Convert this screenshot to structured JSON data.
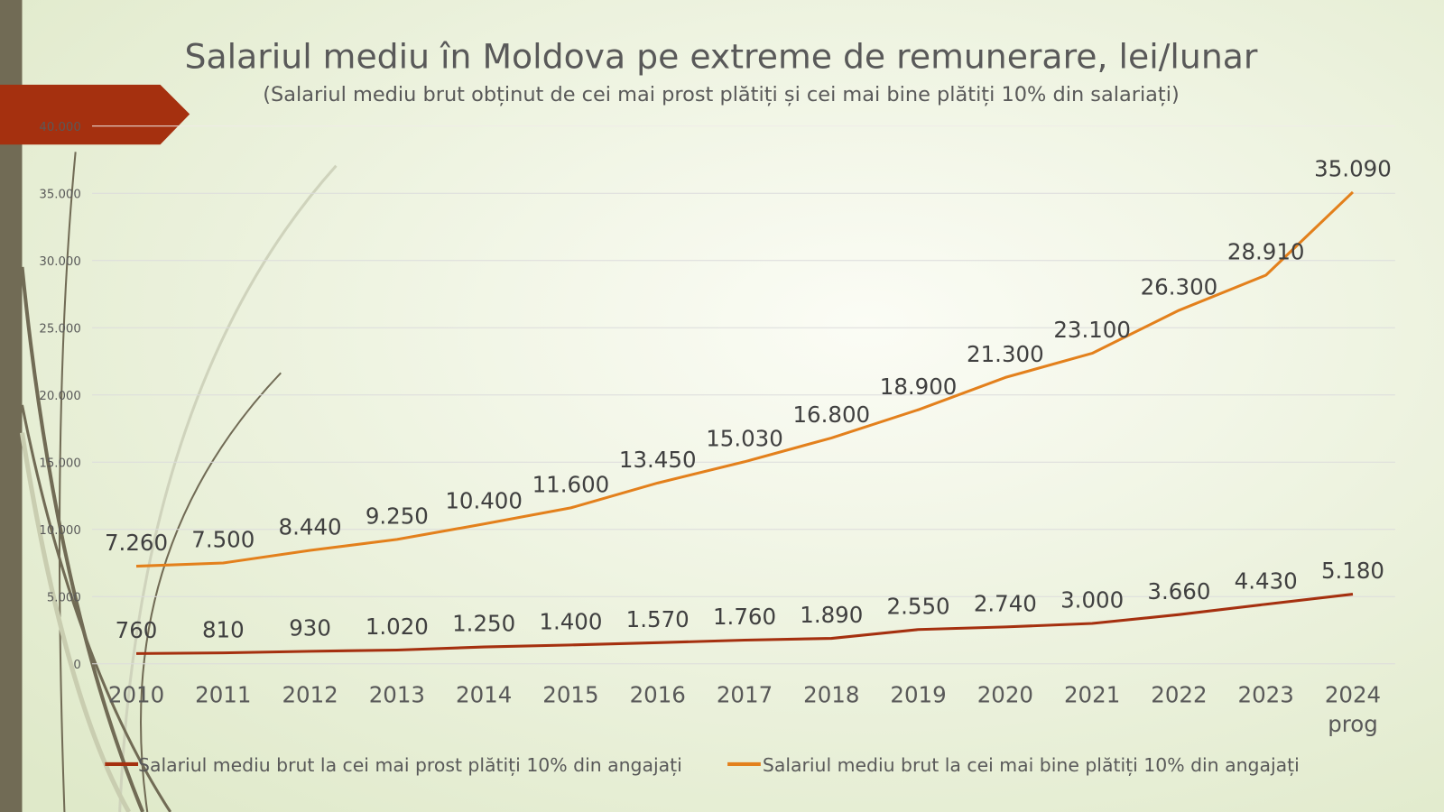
{
  "chart_data": {
    "type": "line",
    "title": "Salariul mediu în Moldova pe extreme de remunerare, lei/lunar",
    "subtitle": "(Salariul mediu brut obținut de cei mai prost plătiți și cei mai bine plătiți 10% din salariați)",
    "categories": [
      "2010",
      "2011",
      "2012",
      "2013",
      "2014",
      "2015",
      "2016",
      "2017",
      "2018",
      "2019",
      "2020",
      "2021",
      "2022",
      "2023",
      "2024 prog"
    ],
    "ylim": [
      0,
      40000
    ],
    "yticks": [
      0,
      5000,
      10000,
      15000,
      20000,
      25000,
      30000,
      35000,
      40000
    ],
    "ytick_labels": [
      "0",
      "5.000",
      "10.000",
      "15.000",
      "20.000",
      "25.000",
      "30.000",
      "35.000",
      "40.000"
    ],
    "grid": true,
    "legend_position": "bottom",
    "series": [
      {
        "name": "Salariul mediu brut la cei mai prost plătiți 10% din angajați",
        "color": "#a5300f",
        "values": [
          760,
          810,
          930,
          1020,
          1250,
          1400,
          1570,
          1760,
          1890,
          2550,
          2740,
          3000,
          3660,
          4430,
          5180
        ],
        "labels": [
          "760",
          "810",
          "930",
          "1.020",
          "1.250",
          "1.400",
          "1.570",
          "1.760",
          "1.890",
          "2.550",
          "2.740",
          "3.000",
          "3.660",
          "4.430",
          "5.180"
        ]
      },
      {
        "name": "Salariul mediu brut la cei mai bine plătiți 10% din angajați",
        "color": "#e3801c",
        "values": [
          7260,
          7500,
          8440,
          9250,
          10400,
          11600,
          13450,
          15030,
          16800,
          18900,
          21300,
          23100,
          26300,
          28910,
          35090
        ],
        "labels": [
          "7.260",
          "7.500",
          "8.440",
          "9.250",
          "10.400",
          "11.600",
          "13.450",
          "15.030",
          "16.800",
          "18.900",
          "21.300",
          "23.100",
          "26.300",
          "28.910",
          "35.090"
        ]
      }
    ]
  }
}
